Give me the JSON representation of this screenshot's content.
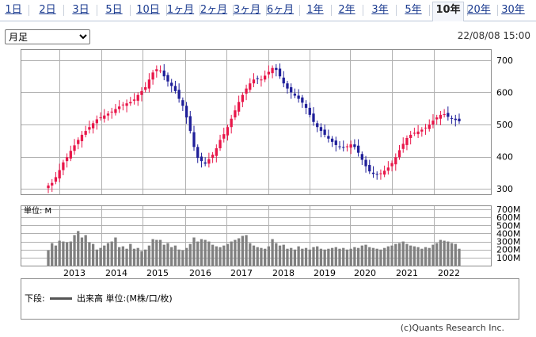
{
  "tabs": [
    {
      "label": "1日"
    },
    {
      "label": "2日"
    },
    {
      "label": "3日"
    },
    {
      "label": "5日"
    },
    {
      "label": "10日"
    },
    {
      "label": "1ヶ月"
    },
    {
      "label": "2ヶ月"
    },
    {
      "label": "3ヶ月"
    },
    {
      "label": "6ヶ月"
    },
    {
      "label": "1年"
    },
    {
      "label": "2年"
    },
    {
      "label": "3年"
    },
    {
      "label": "5年"
    },
    {
      "label": "10年",
      "active": true
    },
    {
      "label": "20年"
    },
    {
      "label": "30年"
    }
  ],
  "period": {
    "selected": "月足"
  },
  "datetime": "22/08/08 15:00",
  "legend": {
    "label": "下段:",
    "text": "出来高 単位:(M株/口/枚)"
  },
  "copyright": "(c)Quants Research Inc.",
  "volume_label": "単位: M",
  "colors": {
    "up": "#e8174a",
    "down": "#1f1f99",
    "volume": "#808080",
    "grid": "#b0b0b0"
  },
  "chart_data": {
    "type": "candlestick",
    "period": "monthly",
    "x_labels": [
      "2013",
      "2014",
      "2015",
      "2016",
      "2017",
      "2018",
      "2019",
      "2020",
      "2021",
      "2022"
    ],
    "price_axis": {
      "ylim": [
        280,
        730
      ],
      "ticks": [
        300,
        400,
        500,
        600,
        700
      ]
    },
    "volume_axis": {
      "ylim": [
        0,
        700
      ],
      "ticks": [
        100,
        200,
        300,
        400,
        500,
        600,
        700
      ],
      "tick_labels": [
        "100M",
        "200M",
        "300M",
        "400M",
        "500M",
        "600M",
        "700M"
      ]
    },
    "close_series": [
      310,
      318,
      336,
      358,
      382,
      398,
      418,
      435,
      452,
      468,
      480,
      492,
      504,
      516,
      522,
      528,
      534,
      540,
      548,
      556,
      562,
      566,
      570,
      578,
      592,
      604,
      616,
      640,
      662,
      672,
      668,
      650,
      634,
      620,
      604,
      580,
      558,
      522,
      480,
      430,
      396,
      386,
      378,
      392,
      406,
      426,
      452,
      470,
      492,
      518,
      544,
      570,
      592,
      612,
      628,
      640,
      642,
      640,
      652,
      664,
      676,
      670,
      650,
      628,
      612,
      600,
      590,
      580,
      568,
      552,
      530,
      508,
      492,
      480,
      468,
      456,
      446,
      436,
      430,
      428,
      432,
      438,
      430,
      412,
      390,
      370,
      354,
      346,
      344,
      348,
      356,
      366,
      380,
      398,
      420,
      440,
      458,
      468,
      474,
      478,
      484,
      490,
      500,
      512,
      522,
      530,
      532,
      524,
      518,
      514,
      510
    ],
    "volume": [
      190,
      280,
      250,
      310,
      300,
      290,
      300,
      380,
      430,
      350,
      380,
      290,
      270,
      200,
      220,
      250,
      280,
      300,
      350,
      230,
      240,
      210,
      270,
      210,
      220,
      180,
      200,
      250,
      330,
      320,
      320,
      260,
      280,
      230,
      250,
      200,
      190,
      220,
      270,
      350,
      300,
      330,
      320,
      300,
      260,
      240,
      230,
      250,
      270,
      300,
      320,
      340,
      370,
      380,
      280,
      250,
      230,
      220,
      210,
      240,
      330,
      280,
      250,
      260,
      210,
      220,
      200,
      240,
      210,
      220,
      200,
      230,
      240,
      210,
      200,
      210,
      220,
      230,
      210,
      220,
      200,
      210,
      230,
      220,
      250,
      260,
      230,
      220,
      210,
      200,
      220,
      240,
      250,
      270,
      280,
      300,
      270,
      250,
      240,
      230,
      210,
      230,
      220,
      260,
      280,
      320,
      310,
      300,
      280,
      270,
      210
    ]
  }
}
